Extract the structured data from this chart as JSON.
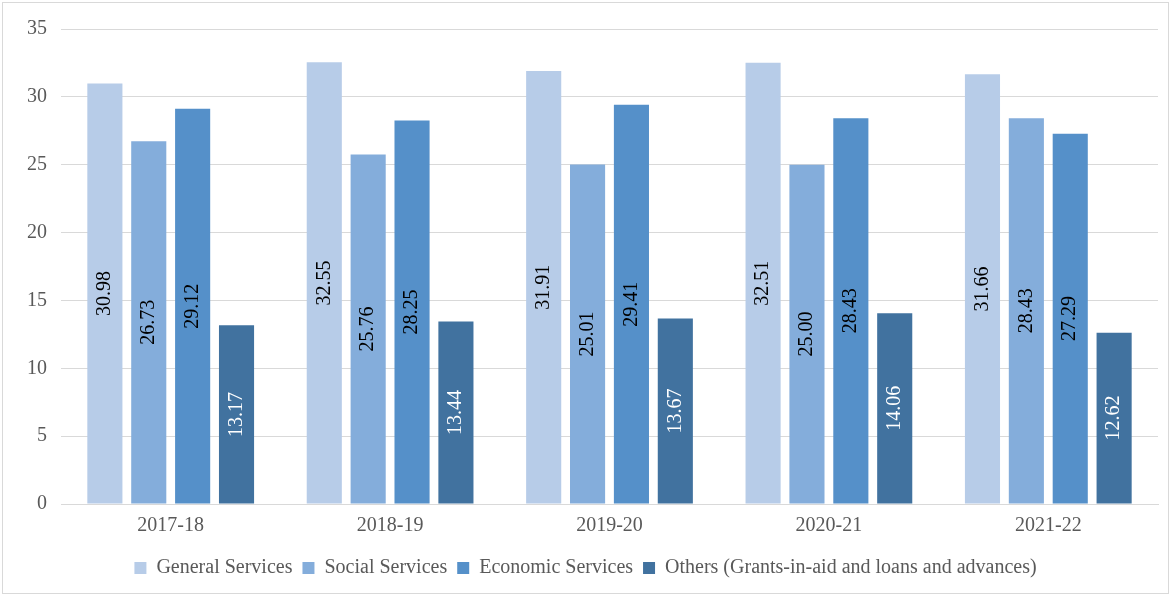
{
  "chart_data": {
    "type": "bar",
    "categories": [
      "2017-18",
      "2018-19",
      "2019-20",
      "2020-21",
      "2021-22"
    ],
    "series": [
      {
        "name": "General Services",
        "color": "#b7cce8",
        "values": [
          30.98,
          32.55,
          31.91,
          32.51,
          31.66
        ],
        "value_labels": [
          "30.98",
          "32.55",
          "31.91",
          "32.51",
          "31.66"
        ]
      },
      {
        "name": "Social Services",
        "color": "#84addb",
        "values": [
          26.73,
          25.76,
          25.01,
          25.0,
          28.43
        ],
        "value_labels": [
          "26.73",
          "25.76",
          "25.01",
          "25.00",
          "28.43"
        ]
      },
      {
        "name": "Economic Services",
        "color": "#5590c9",
        "values": [
          29.12,
          28.25,
          29.41,
          28.43,
          27.29
        ],
        "value_labels": [
          "29.12",
          "28.25",
          "29.41",
          "28.43",
          "27.29"
        ]
      },
      {
        "name": "Others (Grants-in-aid and loans and advances)",
        "color": "#41729f",
        "values": [
          13.17,
          13.44,
          13.67,
          14.06,
          12.62
        ],
        "value_labels": [
          "13.17",
          "13.44",
          "13.67",
          "14.06",
          "12.62"
        ]
      }
    ],
    "ylim": [
      0,
      35
    ],
    "yticks": [
      0,
      5,
      10,
      15,
      20,
      25,
      30,
      35
    ],
    "grid": "y",
    "legend": "bottom"
  }
}
